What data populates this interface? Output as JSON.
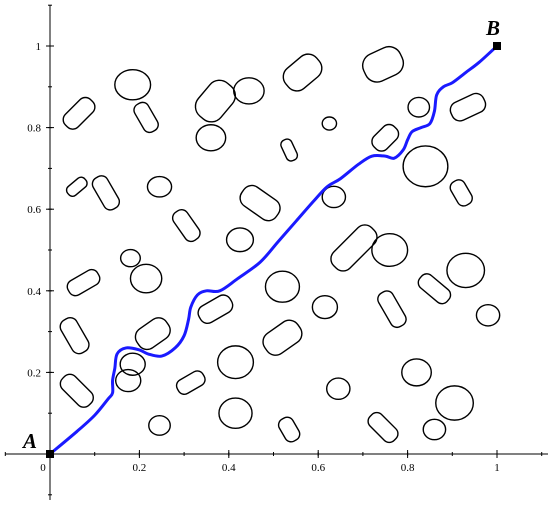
{
  "chart_data": {
    "type": "scatter",
    "title": "",
    "xlabel": "",
    "ylabel": "",
    "xlim": [
      0,
      1
    ],
    "ylim": [
      0,
      1
    ],
    "grid": false,
    "x_ticks": [
      {
        "value": 0,
        "label": "0"
      },
      {
        "value": 0.2,
        "label": "0.2"
      },
      {
        "value": 0.4,
        "label": "0.4"
      },
      {
        "value": 0.6,
        "label": "0.6"
      },
      {
        "value": 0.8,
        "label": "0.8"
      },
      {
        "value": 1,
        "label": "1"
      }
    ],
    "y_ticks": [
      {
        "value": 0.2,
        "label": "0.2"
      },
      {
        "value": 0.4,
        "label": "0.4"
      },
      {
        "value": 0.6,
        "label": "0.6"
      },
      {
        "value": 0.8,
        "label": "0.8"
      },
      {
        "value": 1,
        "label": "1"
      }
    ],
    "points": [
      {
        "label": "A",
        "x": 0,
        "y": 0
      },
      {
        "label": "B",
        "x": 1,
        "y": 1
      }
    ],
    "path_color": "#1a1aff",
    "path": [
      [
        0,
        0
      ],
      [
        0.06,
        0.055
      ],
      [
        0.1,
        0.095
      ],
      [
        0.13,
        0.135
      ],
      [
        0.14,
        0.15
      ],
      [
        0.14,
        0.18
      ],
      [
        0.145,
        0.21
      ],
      [
        0.15,
        0.245
      ],
      [
        0.17,
        0.26
      ],
      [
        0.2,
        0.255
      ],
      [
        0.22,
        0.245
      ],
      [
        0.25,
        0.24
      ],
      [
        0.28,
        0.26
      ],
      [
        0.3,
        0.29
      ],
      [
        0.31,
        0.33
      ],
      [
        0.315,
        0.36
      ],
      [
        0.33,
        0.39
      ],
      [
        0.35,
        0.4
      ],
      [
        0.38,
        0.4
      ],
      [
        0.42,
        0.43
      ],
      [
        0.47,
        0.47
      ],
      [
        0.51,
        0.52
      ],
      [
        0.55,
        0.57
      ],
      [
        0.59,
        0.62
      ],
      [
        0.62,
        0.655
      ],
      [
        0.65,
        0.675
      ],
      [
        0.69,
        0.71
      ],
      [
        0.72,
        0.73
      ],
      [
        0.75,
        0.73
      ],
      [
        0.77,
        0.725
      ],
      [
        0.79,
        0.745
      ],
      [
        0.8,
        0.77
      ],
      [
        0.81,
        0.79
      ],
      [
        0.83,
        0.8
      ],
      [
        0.85,
        0.81
      ],
      [
        0.86,
        0.84
      ],
      [
        0.865,
        0.88
      ],
      [
        0.88,
        0.9
      ],
      [
        0.9,
        0.91
      ],
      [
        0.93,
        0.935
      ],
      [
        0.96,
        0.96
      ],
      [
        1,
        1
      ]
    ],
    "obstacles": [
      {
        "shape": "ellipse",
        "cx": 0.185,
        "cy": 0.905,
        "rx": 0.04,
        "ry": 0.037,
        "angle": 0
      },
      {
        "shape": "capsule",
        "cx": 0.065,
        "cy": 0.835,
        "rx": 0.04,
        "ry": 0.022,
        "angle": -45
      },
      {
        "shape": "capsule",
        "cx": 0.215,
        "cy": 0.825,
        "rx": 0.035,
        "ry": 0.019,
        "angle": 60
      },
      {
        "shape": "capsule",
        "cx": 0.37,
        "cy": 0.865,
        "rx": 0.048,
        "ry": 0.036,
        "angle": -50
      },
      {
        "shape": "ellipse",
        "cx": 0.445,
        "cy": 0.89,
        "rx": 0.034,
        "ry": 0.032,
        "angle": 0
      },
      {
        "shape": "capsule",
        "cx": 0.565,
        "cy": 0.935,
        "rx": 0.045,
        "ry": 0.032,
        "angle": -40
      },
      {
        "shape": "capsule",
        "cx": 0.745,
        "cy": 0.955,
        "rx": 0.045,
        "ry": 0.036,
        "angle": -25
      },
      {
        "shape": "ellipse",
        "cx": 0.36,
        "cy": 0.775,
        "rx": 0.033,
        "ry": 0.032,
        "angle": 0
      },
      {
        "shape": "capsule",
        "cx": 0.535,
        "cy": 0.745,
        "rx": 0.025,
        "ry": 0.014,
        "angle": 65
      },
      {
        "shape": "ellipse",
        "cx": 0.625,
        "cy": 0.81,
        "rx": 0.016,
        "ry": 0.016,
        "angle": 0
      },
      {
        "shape": "capsule",
        "cx": 0.75,
        "cy": 0.775,
        "rx": 0.032,
        "ry": 0.022,
        "angle": -45
      },
      {
        "shape": "ellipse",
        "cx": 0.825,
        "cy": 0.85,
        "rx": 0.024,
        "ry": 0.024,
        "angle": 0
      },
      {
        "shape": "capsule",
        "cx": 0.935,
        "cy": 0.85,
        "rx": 0.04,
        "ry": 0.024,
        "angle": -25
      },
      {
        "shape": "ellipse",
        "cx": 0.84,
        "cy": 0.705,
        "rx": 0.05,
        "ry": 0.05,
        "angle": 0
      },
      {
        "shape": "capsule",
        "cx": 0.06,
        "cy": 0.655,
        "rx": 0.025,
        "ry": 0.014,
        "angle": -40
      },
      {
        "shape": "capsule",
        "cx": 0.125,
        "cy": 0.64,
        "rx": 0.04,
        "ry": 0.02,
        "angle": 60
      },
      {
        "shape": "ellipse",
        "cx": 0.245,
        "cy": 0.655,
        "rx": 0.027,
        "ry": 0.025,
        "angle": 0
      },
      {
        "shape": "capsule",
        "cx": 0.47,
        "cy": 0.615,
        "rx": 0.047,
        "ry": 0.028,
        "angle": 35
      },
      {
        "shape": "ellipse",
        "cx": 0.635,
        "cy": 0.63,
        "rx": 0.026,
        "ry": 0.026,
        "angle": 0
      },
      {
        "shape": "capsule",
        "cx": 0.92,
        "cy": 0.64,
        "rx": 0.03,
        "ry": 0.019,
        "angle": 60
      },
      {
        "shape": "capsule",
        "cx": 0.305,
        "cy": 0.56,
        "rx": 0.038,
        "ry": 0.02,
        "angle": 55
      },
      {
        "shape": "ellipse",
        "cx": 0.425,
        "cy": 0.525,
        "rx": 0.03,
        "ry": 0.029,
        "angle": 0
      },
      {
        "shape": "capsule",
        "cx": 0.68,
        "cy": 0.505,
        "rx": 0.06,
        "ry": 0.028,
        "angle": -45
      },
      {
        "shape": "ellipse",
        "cx": 0.76,
        "cy": 0.5,
        "rx": 0.04,
        "ry": 0.04,
        "angle": 0
      },
      {
        "shape": "ellipse",
        "cx": 0.18,
        "cy": 0.48,
        "rx": 0.022,
        "ry": 0.021,
        "angle": 0
      },
      {
        "shape": "ellipse",
        "cx": 0.215,
        "cy": 0.43,
        "rx": 0.035,
        "ry": 0.035,
        "angle": 0
      },
      {
        "shape": "capsule",
        "cx": 0.075,
        "cy": 0.42,
        "rx": 0.038,
        "ry": 0.02,
        "angle": -30
      },
      {
        "shape": "ellipse",
        "cx": 0.52,
        "cy": 0.41,
        "rx": 0.038,
        "ry": 0.038,
        "angle": 0
      },
      {
        "shape": "ellipse",
        "cx": 0.93,
        "cy": 0.45,
        "rx": 0.042,
        "ry": 0.042,
        "angle": 0
      },
      {
        "shape": "capsule",
        "cx": 0.86,
        "cy": 0.405,
        "rx": 0.04,
        "ry": 0.02,
        "angle": 40
      },
      {
        "shape": "capsule",
        "cx": 0.37,
        "cy": 0.355,
        "rx": 0.04,
        "ry": 0.023,
        "angle": -30
      },
      {
        "shape": "ellipse",
        "cx": 0.615,
        "cy": 0.36,
        "rx": 0.028,
        "ry": 0.028,
        "angle": 0
      },
      {
        "shape": "capsule",
        "cx": 0.765,
        "cy": 0.355,
        "rx": 0.043,
        "ry": 0.02,
        "angle": 60
      },
      {
        "shape": "ellipse",
        "cx": 0.98,
        "cy": 0.34,
        "rx": 0.026,
        "ry": 0.026,
        "angle": 0
      },
      {
        "shape": "capsule",
        "cx": 0.055,
        "cy": 0.29,
        "rx": 0.042,
        "ry": 0.022,
        "angle": 60
      },
      {
        "shape": "capsule",
        "cx": 0.23,
        "cy": 0.295,
        "rx": 0.04,
        "ry": 0.028,
        "angle": -35
      },
      {
        "shape": "capsule",
        "cx": 0.52,
        "cy": 0.285,
        "rx": 0.045,
        "ry": 0.03,
        "angle": -35
      },
      {
        "shape": "ellipse",
        "cx": 0.185,
        "cy": 0.22,
        "rx": 0.028,
        "ry": 0.027,
        "angle": 0
      },
      {
        "shape": "ellipse",
        "cx": 0.175,
        "cy": 0.18,
        "rx": 0.028,
        "ry": 0.027,
        "angle": 0
      },
      {
        "shape": "ellipse",
        "cx": 0.415,
        "cy": 0.225,
        "rx": 0.04,
        "ry": 0.04,
        "angle": 0
      },
      {
        "shape": "capsule",
        "cx": 0.06,
        "cy": 0.155,
        "rx": 0.042,
        "ry": 0.022,
        "angle": 45
      },
      {
        "shape": "capsule",
        "cx": 0.315,
        "cy": 0.175,
        "rx": 0.033,
        "ry": 0.019,
        "angle": -30
      },
      {
        "shape": "ellipse",
        "cx": 0.645,
        "cy": 0.16,
        "rx": 0.026,
        "ry": 0.026,
        "angle": 0
      },
      {
        "shape": "ellipse",
        "cx": 0.82,
        "cy": 0.2,
        "rx": 0.033,
        "ry": 0.033,
        "angle": 0
      },
      {
        "shape": "ellipse",
        "cx": 0.905,
        "cy": 0.125,
        "rx": 0.042,
        "ry": 0.042,
        "angle": 0
      },
      {
        "shape": "ellipse",
        "cx": 0.415,
        "cy": 0.1,
        "rx": 0.037,
        "ry": 0.037,
        "angle": 0
      },
      {
        "shape": "ellipse",
        "cx": 0.245,
        "cy": 0.07,
        "rx": 0.024,
        "ry": 0.024,
        "angle": 0
      },
      {
        "shape": "capsule",
        "cx": 0.535,
        "cy": 0.06,
        "rx": 0.028,
        "ry": 0.019,
        "angle": 60
      },
      {
        "shape": "capsule",
        "cx": 0.745,
        "cy": 0.065,
        "rx": 0.038,
        "ry": 0.02,
        "angle": 45
      },
      {
        "shape": "ellipse",
        "cx": 0.86,
        "cy": 0.06,
        "rx": 0.025,
        "ry": 0.025,
        "angle": 0
      }
    ]
  }
}
